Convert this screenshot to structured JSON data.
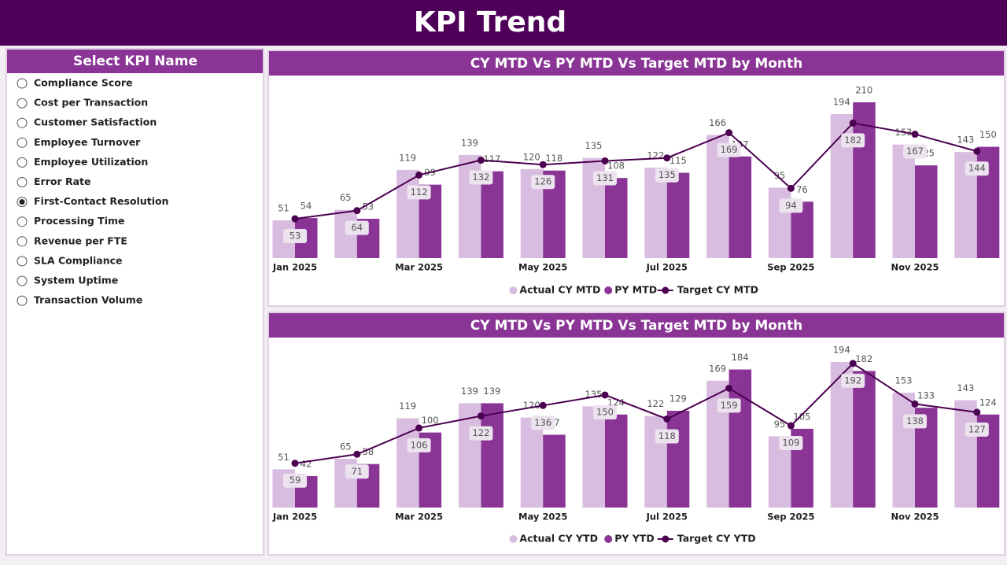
{
  "header": {
    "title": "KPI Trend"
  },
  "slicer": {
    "title": "Select KPI Name",
    "options": [
      {
        "label": "Compliance Score",
        "checked": false
      },
      {
        "label": "Cost per Transaction",
        "checked": false
      },
      {
        "label": "Customer Satisfaction",
        "checked": false
      },
      {
        "label": "Employee Turnover",
        "checked": false
      },
      {
        "label": "Employee Utilization",
        "checked": false
      },
      {
        "label": "Error Rate",
        "checked": false
      },
      {
        "label": "First-Contact Resolution",
        "checked": true
      },
      {
        "label": "Processing Time",
        "checked": false
      },
      {
        "label": "Revenue per FTE",
        "checked": false
      },
      {
        "label": "SLA Compliance",
        "checked": false
      },
      {
        "label": "System Uptime",
        "checked": false
      },
      {
        "label": "Transaction Volume",
        "checked": false
      }
    ]
  },
  "chart_data": [
    {
      "type": "bar",
      "title": "CY MTD Vs PY MTD Vs Target MTD by Month",
      "categories": [
        "Jan 2025",
        null,
        "Mar 2025",
        null,
        "May 2025",
        null,
        "Jul 2025",
        null,
        "Sep 2025",
        null,
        "Nov 2025",
        null
      ],
      "series": [
        {
          "name": "Actual CY MTD",
          "color": "#d9bde0",
          "values": [
            51,
            65,
            119,
            139,
            120,
            135,
            122,
            166,
            95,
            194,
            153,
            143
          ]
        },
        {
          "name": "PY MTD",
          "color": "#8a3596",
          "values": [
            54,
            53,
            99,
            117,
            118,
            108,
            115,
            137,
            76,
            210,
            125,
            150
          ]
        },
        {
          "name": "Target CY MTD",
          "color": "#4b0050",
          "type": "line",
          "values": [
            53,
            64,
            112,
            132,
            126,
            131,
            135,
            169,
            94,
            182,
            167,
            144
          ]
        }
      ],
      "legend": "bottom"
    },
    {
      "type": "bar",
      "title": "CY MTD Vs PY MTD Vs Target MTD by Month",
      "categories": [
        "Jan 2025",
        null,
        "Mar 2025",
        null,
        "May 2025",
        null,
        "Jul 2025",
        null,
        "Sep 2025",
        null,
        "Nov 2025",
        null
      ],
      "series": [
        {
          "name": "Actual CY YTD",
          "color": "#d9bde0",
          "values": [
            51,
            65,
            119,
            139,
            120,
            135,
            122,
            169,
            95,
            194,
            153,
            143
          ]
        },
        {
          "name": "PY YTD",
          "color": "#8a3596",
          "values": [
            42,
            58,
            100,
            139,
            97,
            124,
            129,
            184,
            105,
            182,
            133,
            124
          ]
        },
        {
          "name": "Target CY YTD",
          "color": "#4b0050",
          "type": "line",
          "values": [
            59,
            71,
            106,
            122,
            136,
            150,
            118,
            159,
            109,
            192,
            138,
            127
          ]
        }
      ],
      "legend": "bottom"
    }
  ]
}
